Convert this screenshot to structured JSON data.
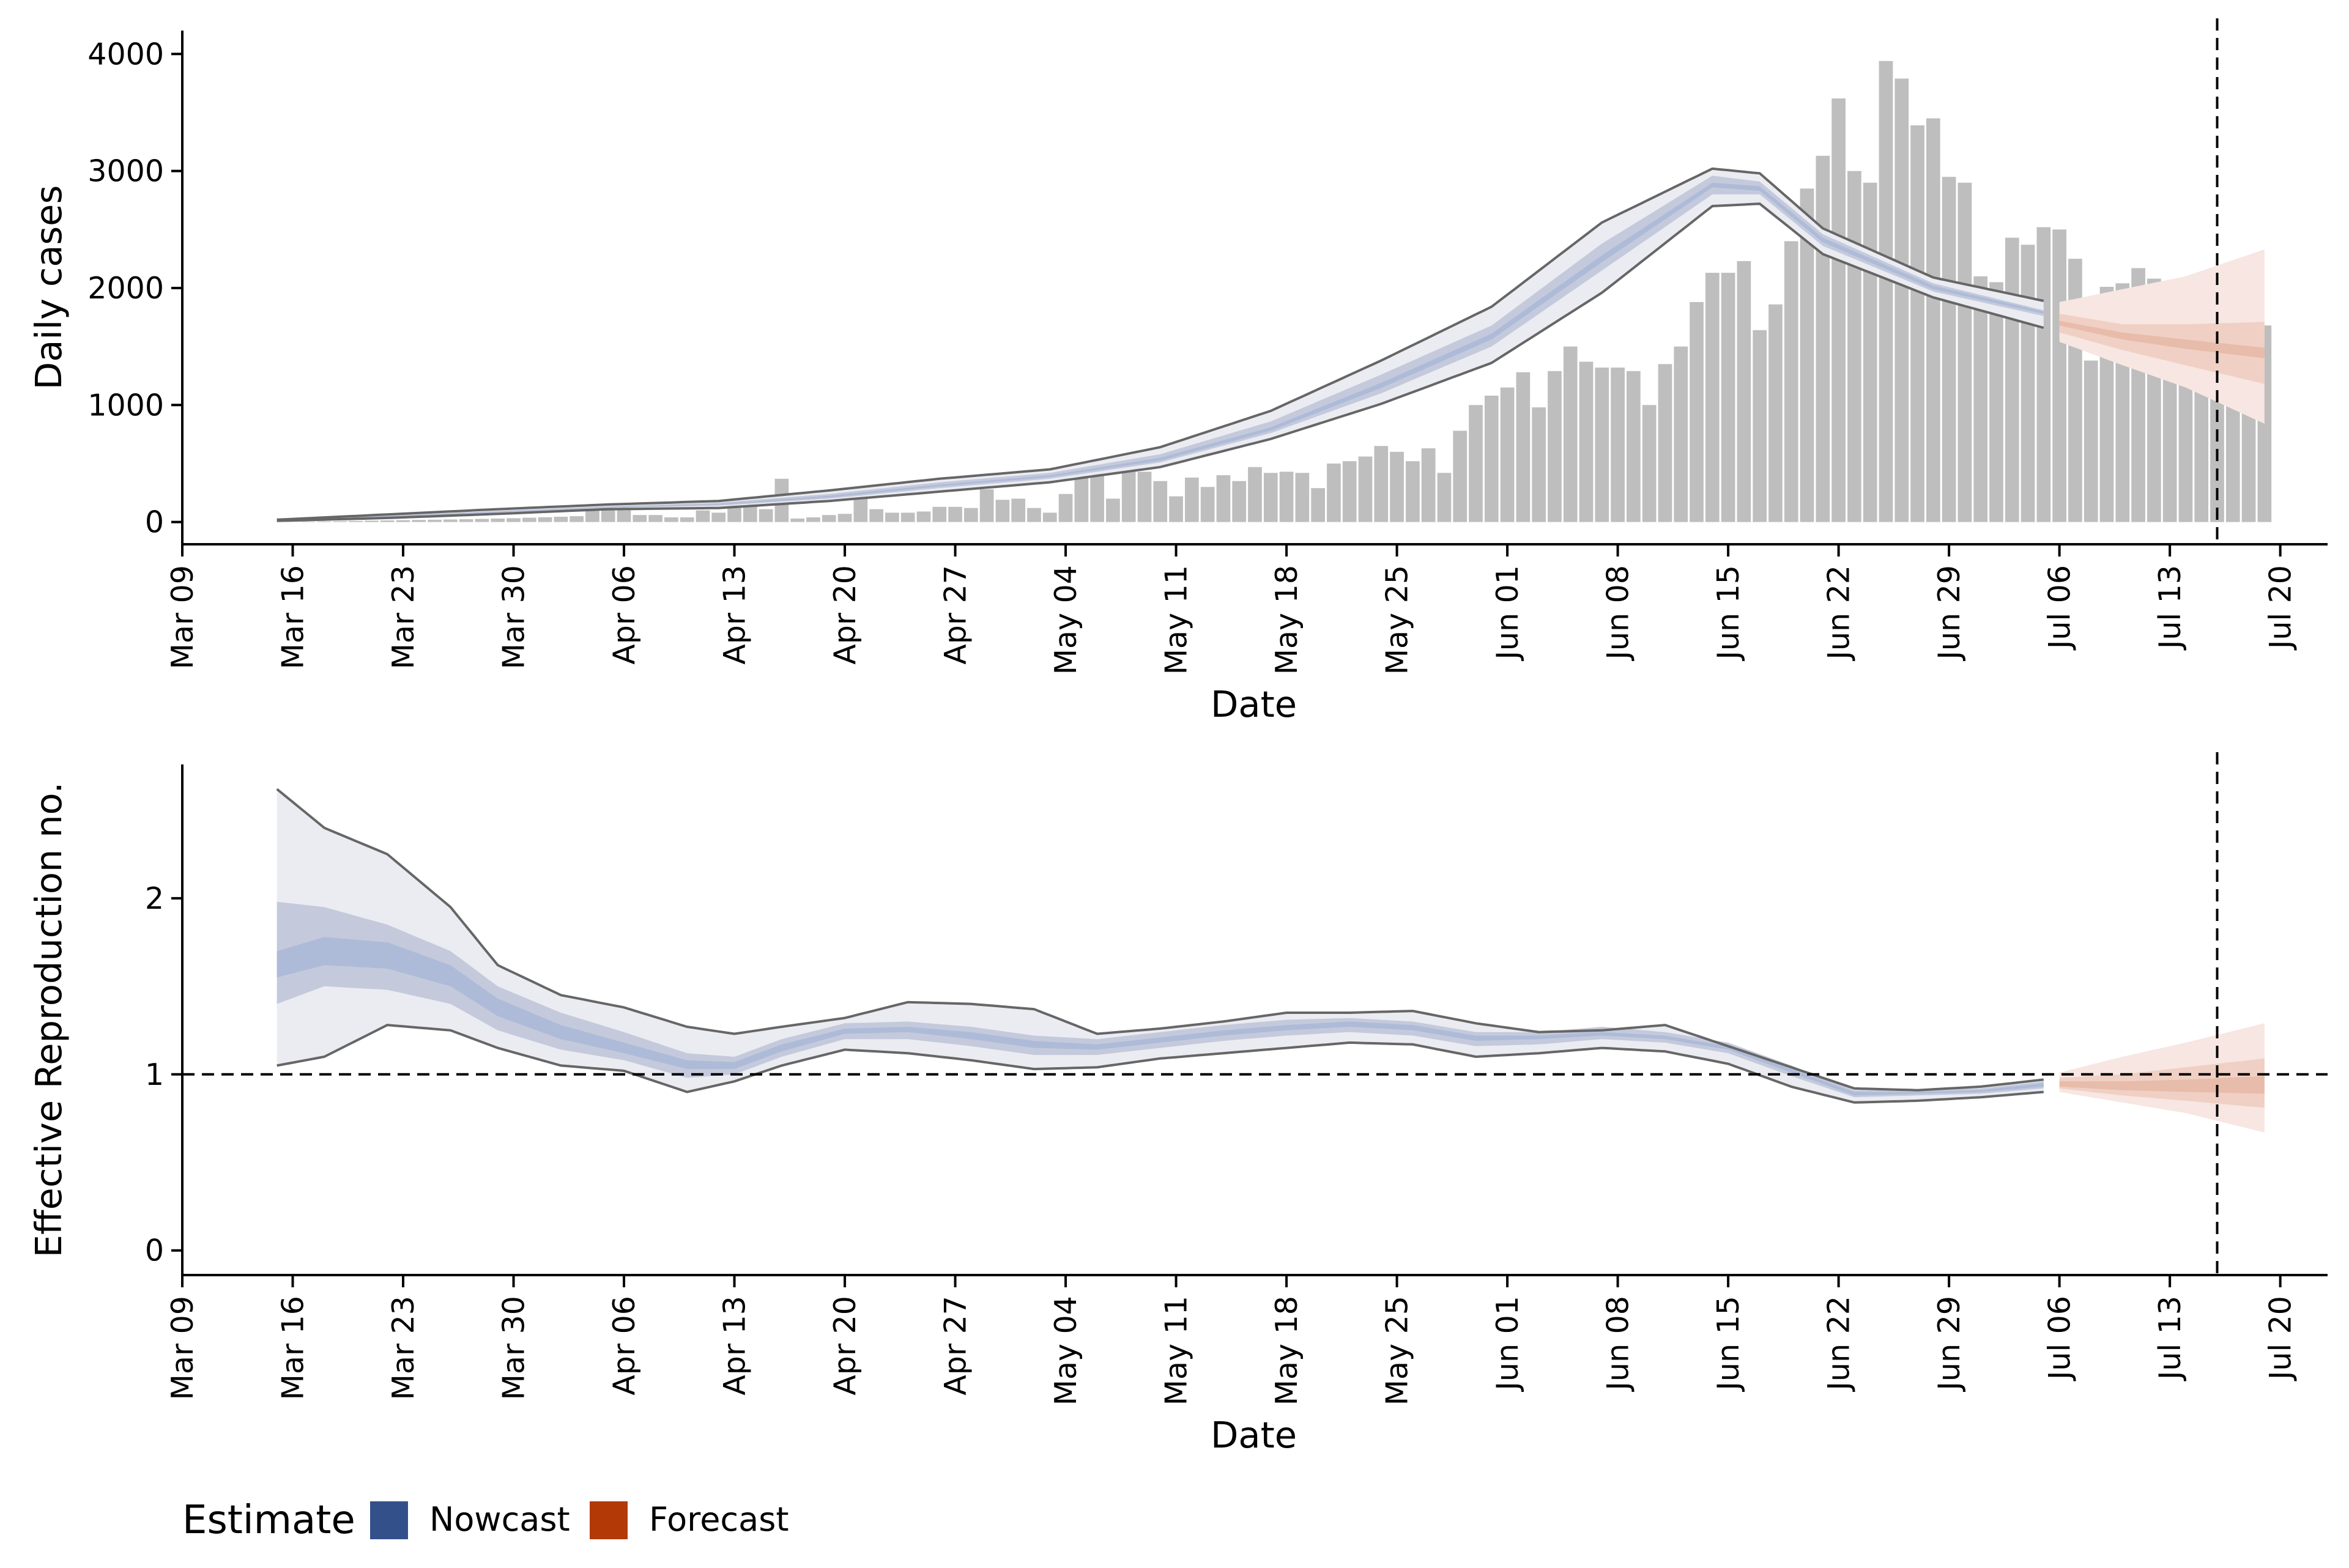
{
  "legend": {
    "title": "Estimate",
    "items": [
      {
        "label": "Nowcast",
        "color": "#33508a"
      },
      {
        "label": "Forecast",
        "color": "#b33a06"
      }
    ]
  },
  "colors": {
    "nowcast_outer": "#ebecf2",
    "nowcast_mid": "#c4cadc",
    "nowcast_inner": "#aebbd8",
    "forecast_outer": "#f7e6e1",
    "forecast_mid": "#f0d0c4",
    "forecast_inner": "#e8bcaa",
    "bars": "#bebebe",
    "outline": "#666666"
  },
  "chart_data": [
    {
      "type": "bar+area",
      "xlabel": "Date",
      "ylabel": "Daily cases",
      "x_ticks": [
        "Mar 09",
        "Mar 16",
        "Mar 23",
        "Mar 30",
        "Apr 06",
        "Apr 13",
        "Apr 20",
        "Apr 27",
        "May 04",
        "May 11",
        "May 18",
        "May 25",
        "Jun 01",
        "Jun 08",
        "Jun 15",
        "Jun 22",
        "Jun 29",
        "Jul 06",
        "Jul 13",
        "Jul 20"
      ],
      "xlim": [
        "2020-03-09",
        "2020-07-23"
      ],
      "y_ticks": [
        0,
        1000,
        2000,
        3000,
        4000
      ],
      "ylim": [
        -190,
        4200
      ],
      "vline_date": "2020-07-16",
      "bars": {
        "start_date": "2020-03-15",
        "values": [
          0,
          2,
          4,
          6,
          8,
          10,
          12,
          14,
          16,
          18,
          20,
          22,
          24,
          27,
          30,
          33,
          37,
          41,
          45,
          50,
          140,
          130,
          120,
          60,
          60,
          40,
          40,
          100,
          80,
          180,
          160,
          110,
          370,
          30,
          40,
          60,
          70,
          200,
          110,
          80,
          80,
          90,
          130,
          130,
          120,
          280,
          190,
          200,
          120,
          80,
          240,
          420,
          420,
          200,
          440,
          430,
          350,
          220,
          380,
          300,
          400,
          350,
          470,
          420,
          430,
          420,
          290,
          500,
          520,
          560,
          650,
          600,
          520,
          630,
          420,
          780,
          1000,
          1080,
          1150,
          1280,
          980,
          1290,
          1500,
          1370,
          1320,
          1320,
          1290,
          1000,
          1350,
          1500,
          1880,
          2130,
          2130,
          2230,
          1640,
          1860,
          2400,
          2850,
          3130,
          3620,
          3000,
          2900,
          3940,
          3790,
          3390,
          3450,
          2950,
          2900,
          2100,
          2050,
          2430,
          2370,
          2520,
          2500,
          2250,
          1380,
          2010,
          2040,
          2170,
          2080,
          1770,
          1770,
          1530,
          1240,
          1580,
          1650,
          1680
        ],
        "note": ""
      },
      "nowcast": {
        "start_date": "2020-03-15",
        "end_date": "2020-07-05",
        "key_dates": [
          "2020-03-15",
          "2020-03-22",
          "2020-03-29",
          "2020-04-05",
          "2020-04-12",
          "2020-04-19",
          "2020-04-26",
          "2020-05-03",
          "2020-05-10",
          "2020-05-17",
          "2020-05-24",
          "2020-05-31",
          "2020-06-07",
          "2020-06-14",
          "2020-06-17",
          "2020-06-21",
          "2020-06-28",
          "2020-07-05"
        ],
        "lo90": [
          10,
          35,
          70,
          110,
          120,
          180,
          260,
          340,
          470,
          710,
          1010,
          1360,
          1960,
          2700,
          2720,
          2290,
          1920,
          1660
        ],
        "lo50": [
          12,
          40,
          80,
          120,
          140,
          200,
          290,
          370,
          510,
          760,
          1100,
          1500,
          2150,
          2800,
          2800,
          2360,
          1970,
          1760
        ],
        "lo20": [
          14,
          45,
          85,
          125,
          148,
          210,
          305,
          385,
          525,
          780,
          1145,
          1560,
          2220,
          2860,
          2830,
          2390,
          1990,
          1780
        ],
        "hi20": [
          16,
          50,
          90,
          130,
          155,
          225,
          320,
          400,
          550,
          810,
          1190,
          1610,
          2280,
          2900,
          2870,
          2430,
          2020,
          1800
        ],
        "hi50": [
          18,
          55,
          95,
          135,
          165,
          240,
          340,
          420,
          580,
          860,
          1260,
          1680,
          2380,
          2960,
          2910,
          2460,
          2040,
          1810
        ],
        "hi90": [
          20,
          65,
          110,
          150,
          180,
          270,
          370,
          450,
          640,
          950,
          1380,
          1840,
          2560,
          3020,
          2980,
          2510,
          2090,
          1890
        ]
      },
      "forecast": {
        "key_dates": [
          "2020-07-06",
          "2020-07-10",
          "2020-07-14",
          "2020-07-19"
        ],
        "lo90": [
          1540,
          1340,
          1150,
          840
        ],
        "lo50": [
          1620,
          1470,
          1340,
          1180
        ],
        "lo20": [
          1680,
          1560,
          1480,
          1400
        ],
        "hi20": [
          1720,
          1620,
          1560,
          1490
        ],
        "hi50": [
          1780,
          1690,
          1690,
          1710
        ],
        "hi90": [
          1880,
          1990,
          2100,
          2330
        ]
      }
    },
    {
      "type": "area",
      "xlabel": "Date",
      "ylabel": "Effective Reproduction no.",
      "x_ticks": [
        "Mar 09",
        "Mar 16",
        "Mar 23",
        "Mar 30",
        "Apr 06",
        "Apr 13",
        "Apr 20",
        "Apr 27",
        "May 04",
        "May 11",
        "May 18",
        "May 25",
        "Jun 01",
        "Jun 08",
        "Jun 15",
        "Jun 22",
        "Jun 29",
        "Jul 06",
        "Jul 13",
        "Jul 20"
      ],
      "xlim": [
        "2020-03-09",
        "2020-07-23"
      ],
      "y_ticks": [
        0,
        1,
        2
      ],
      "ylim": [
        -0.14,
        2.76
      ],
      "hline": 1,
      "vline_date": "2020-07-16",
      "nowcast": {
        "key_dates": [
          "2020-03-15",
          "2020-03-18",
          "2020-03-22",
          "2020-03-26",
          "2020-03-29",
          "2020-04-02",
          "2020-04-06",
          "2020-04-10",
          "2020-04-13",
          "2020-04-16",
          "2020-04-20",
          "2020-04-24",
          "2020-04-28",
          "2020-05-02",
          "2020-05-06",
          "2020-05-10",
          "2020-05-14",
          "2020-05-18",
          "2020-05-22",
          "2020-05-26",
          "2020-05-30",
          "2020-06-03",
          "2020-06-07",
          "2020-06-11",
          "2020-06-15",
          "2020-06-19",
          "2020-06-23",
          "2020-06-27",
          "2020-07-01",
          "2020-07-05"
        ],
        "lo90": [
          1.05,
          1.1,
          1.28,
          1.25,
          1.15,
          1.05,
          1.02,
          0.9,
          0.96,
          1.05,
          1.14,
          1.12,
          1.08,
          1.03,
          1.04,
          1.09,
          1.12,
          1.15,
          1.18,
          1.17,
          1.1,
          1.12,
          1.15,
          1.13,
          1.06,
          0.93,
          0.84,
          0.85,
          0.87,
          0.9
        ],
        "lo50": [
          1.4,
          1.5,
          1.48,
          1.4,
          1.25,
          1.14,
          1.08,
          0.98,
          1.0,
          1.1,
          1.2,
          1.2,
          1.16,
          1.11,
          1.11,
          1.15,
          1.19,
          1.22,
          1.24,
          1.22,
          1.16,
          1.17,
          1.2,
          1.18,
          1.12,
          0.99,
          0.87,
          0.88,
          0.89,
          0.92
        ],
        "lo20": [
          1.55,
          1.62,
          1.6,
          1.5,
          1.33,
          1.2,
          1.12,
          1.03,
          1.03,
          1.13,
          1.23,
          1.24,
          1.2,
          1.15,
          1.14,
          1.18,
          1.22,
          1.25,
          1.27,
          1.25,
          1.19,
          1.2,
          1.22,
          1.2,
          1.14,
          1.01,
          0.88,
          0.89,
          0.9,
          0.93
        ],
        "hi20": [
          1.7,
          1.78,
          1.75,
          1.62,
          1.43,
          1.28,
          1.18,
          1.08,
          1.07,
          1.17,
          1.26,
          1.27,
          1.24,
          1.19,
          1.17,
          1.21,
          1.25,
          1.28,
          1.3,
          1.28,
          1.22,
          1.22,
          1.24,
          1.22,
          1.16,
          1.03,
          0.9,
          0.9,
          0.91,
          0.95
        ],
        "hi50": [
          1.98,
          1.95,
          1.85,
          1.7,
          1.5,
          1.35,
          1.24,
          1.12,
          1.1,
          1.2,
          1.29,
          1.3,
          1.27,
          1.22,
          1.2,
          1.24,
          1.28,
          1.31,
          1.32,
          1.3,
          1.24,
          1.24,
          1.27,
          1.24,
          1.18,
          1.05,
          0.91,
          0.91,
          0.92,
          0.96
        ],
        "hi90": [
          2.62,
          2.4,
          2.25,
          1.95,
          1.62,
          1.45,
          1.38,
          1.27,
          1.23,
          1.27,
          1.32,
          1.41,
          1.4,
          1.37,
          1.23,
          1.26,
          1.3,
          1.35,
          1.35,
          1.36,
          1.29,
          1.24,
          1.25,
          1.28,
          1.16,
          1.04,
          0.92,
          0.91,
          0.93,
          0.97
        ]
      },
      "forecast": {
        "key_dates": [
          "2020-07-06",
          "2020-07-10",
          "2020-07-14",
          "2020-07-19"
        ],
        "lo90": [
          0.9,
          0.84,
          0.78,
          0.67
        ],
        "lo50": [
          0.92,
          0.88,
          0.85,
          0.81
        ],
        "lo20": [
          0.93,
          0.91,
          0.9,
          0.89
        ],
        "hi20": [
          0.96,
          0.96,
          0.97,
          0.99
        ],
        "hi50": [
          0.98,
          1.0,
          1.04,
          1.09
        ],
        "hi90": [
          1.01,
          1.1,
          1.18,
          1.29
        ]
      }
    }
  ]
}
